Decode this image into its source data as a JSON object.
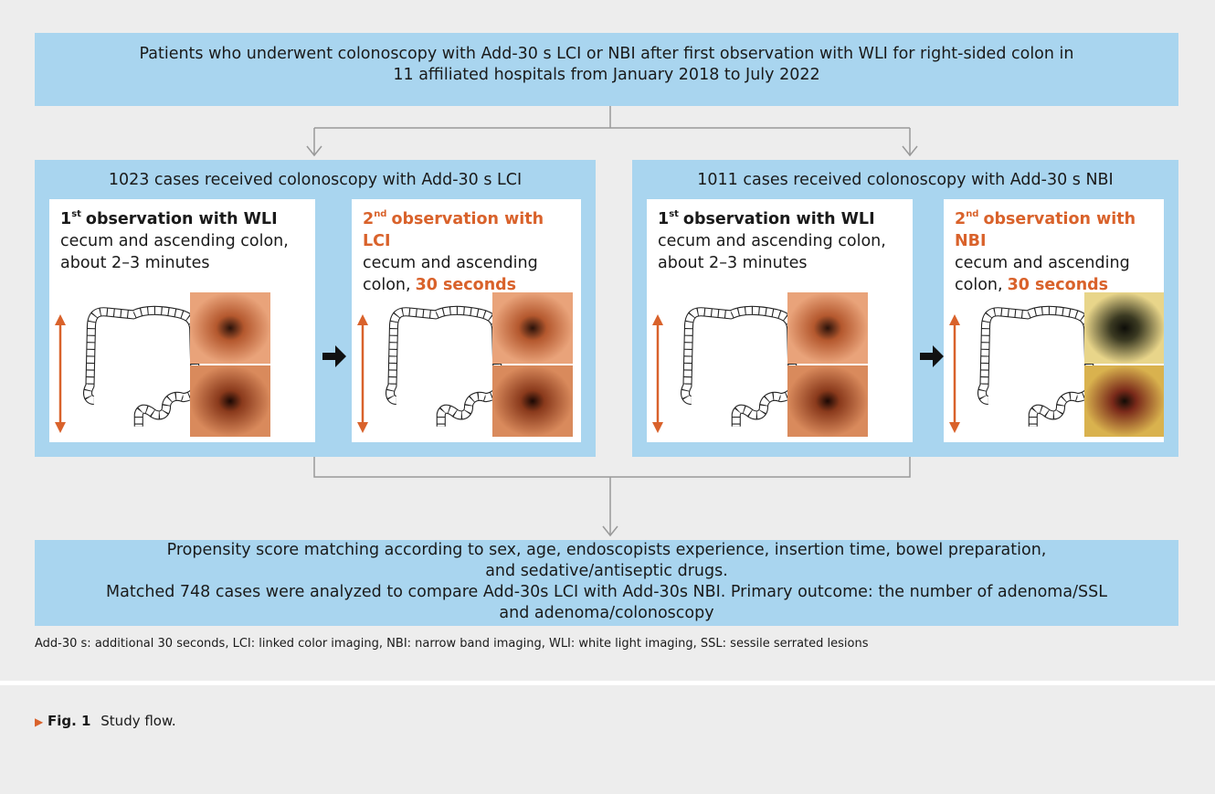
{
  "top_box": {
    "lines": [
      "Patients who underwent colonoscopy with Add-30 s LCI or NBI after first observation with WLI for right-sided colon in",
      "11 affiliated hospitals from January 2018 to July 2022"
    ]
  },
  "groups": [
    {
      "title": "1023 cases received colonoscopy with Add-30 s LCI",
      "panels": [
        {
          "number": "1",
          "superscript": "st",
          "heading": "observation with WLI",
          "text": "cecum and ascending colon, about 2–3 minutes"
        },
        {
          "number": "2",
          "superscript": "nd",
          "heading": "observation with LCI",
          "text": "cecum and ascending colon,",
          "highlight": "30 seconds"
        }
      ]
    },
    {
      "title": "1011 cases received colonoscopy with Add-30 s NBI",
      "panels": [
        {
          "number": "1",
          "superscript": "st",
          "heading": "observation with WLI",
          "text": "cecum and ascending colon, about 2–3 minutes"
        },
        {
          "number": "2",
          "superscript": "nd",
          "heading": "observation with NBI",
          "text": "cecum and ascending colon,",
          "highlight": "30 seconds"
        }
      ]
    }
  ],
  "bottom_box": {
    "lines": [
      "Propensity score matching according to sex, age, endoscopists experience, insertion time, bowel preparation,",
      "and sedative/antiseptic drugs.",
      "Matched 748 cases were analyzed to compare Add-30s LCI with Add-30s NBI. Primary outcome: the number of adenoma/SSL",
      "and adenoma/colonoscopy"
    ]
  },
  "footnote": "Add-30 s: additional 30 seconds, LCI: linked color imaging, NBI: narrow band imaging, WLI: white light imaging, SSL: sessile serrated lesions",
  "caption": {
    "marker": "▶",
    "label": "Fig. 1",
    "text": "Study flow."
  }
}
